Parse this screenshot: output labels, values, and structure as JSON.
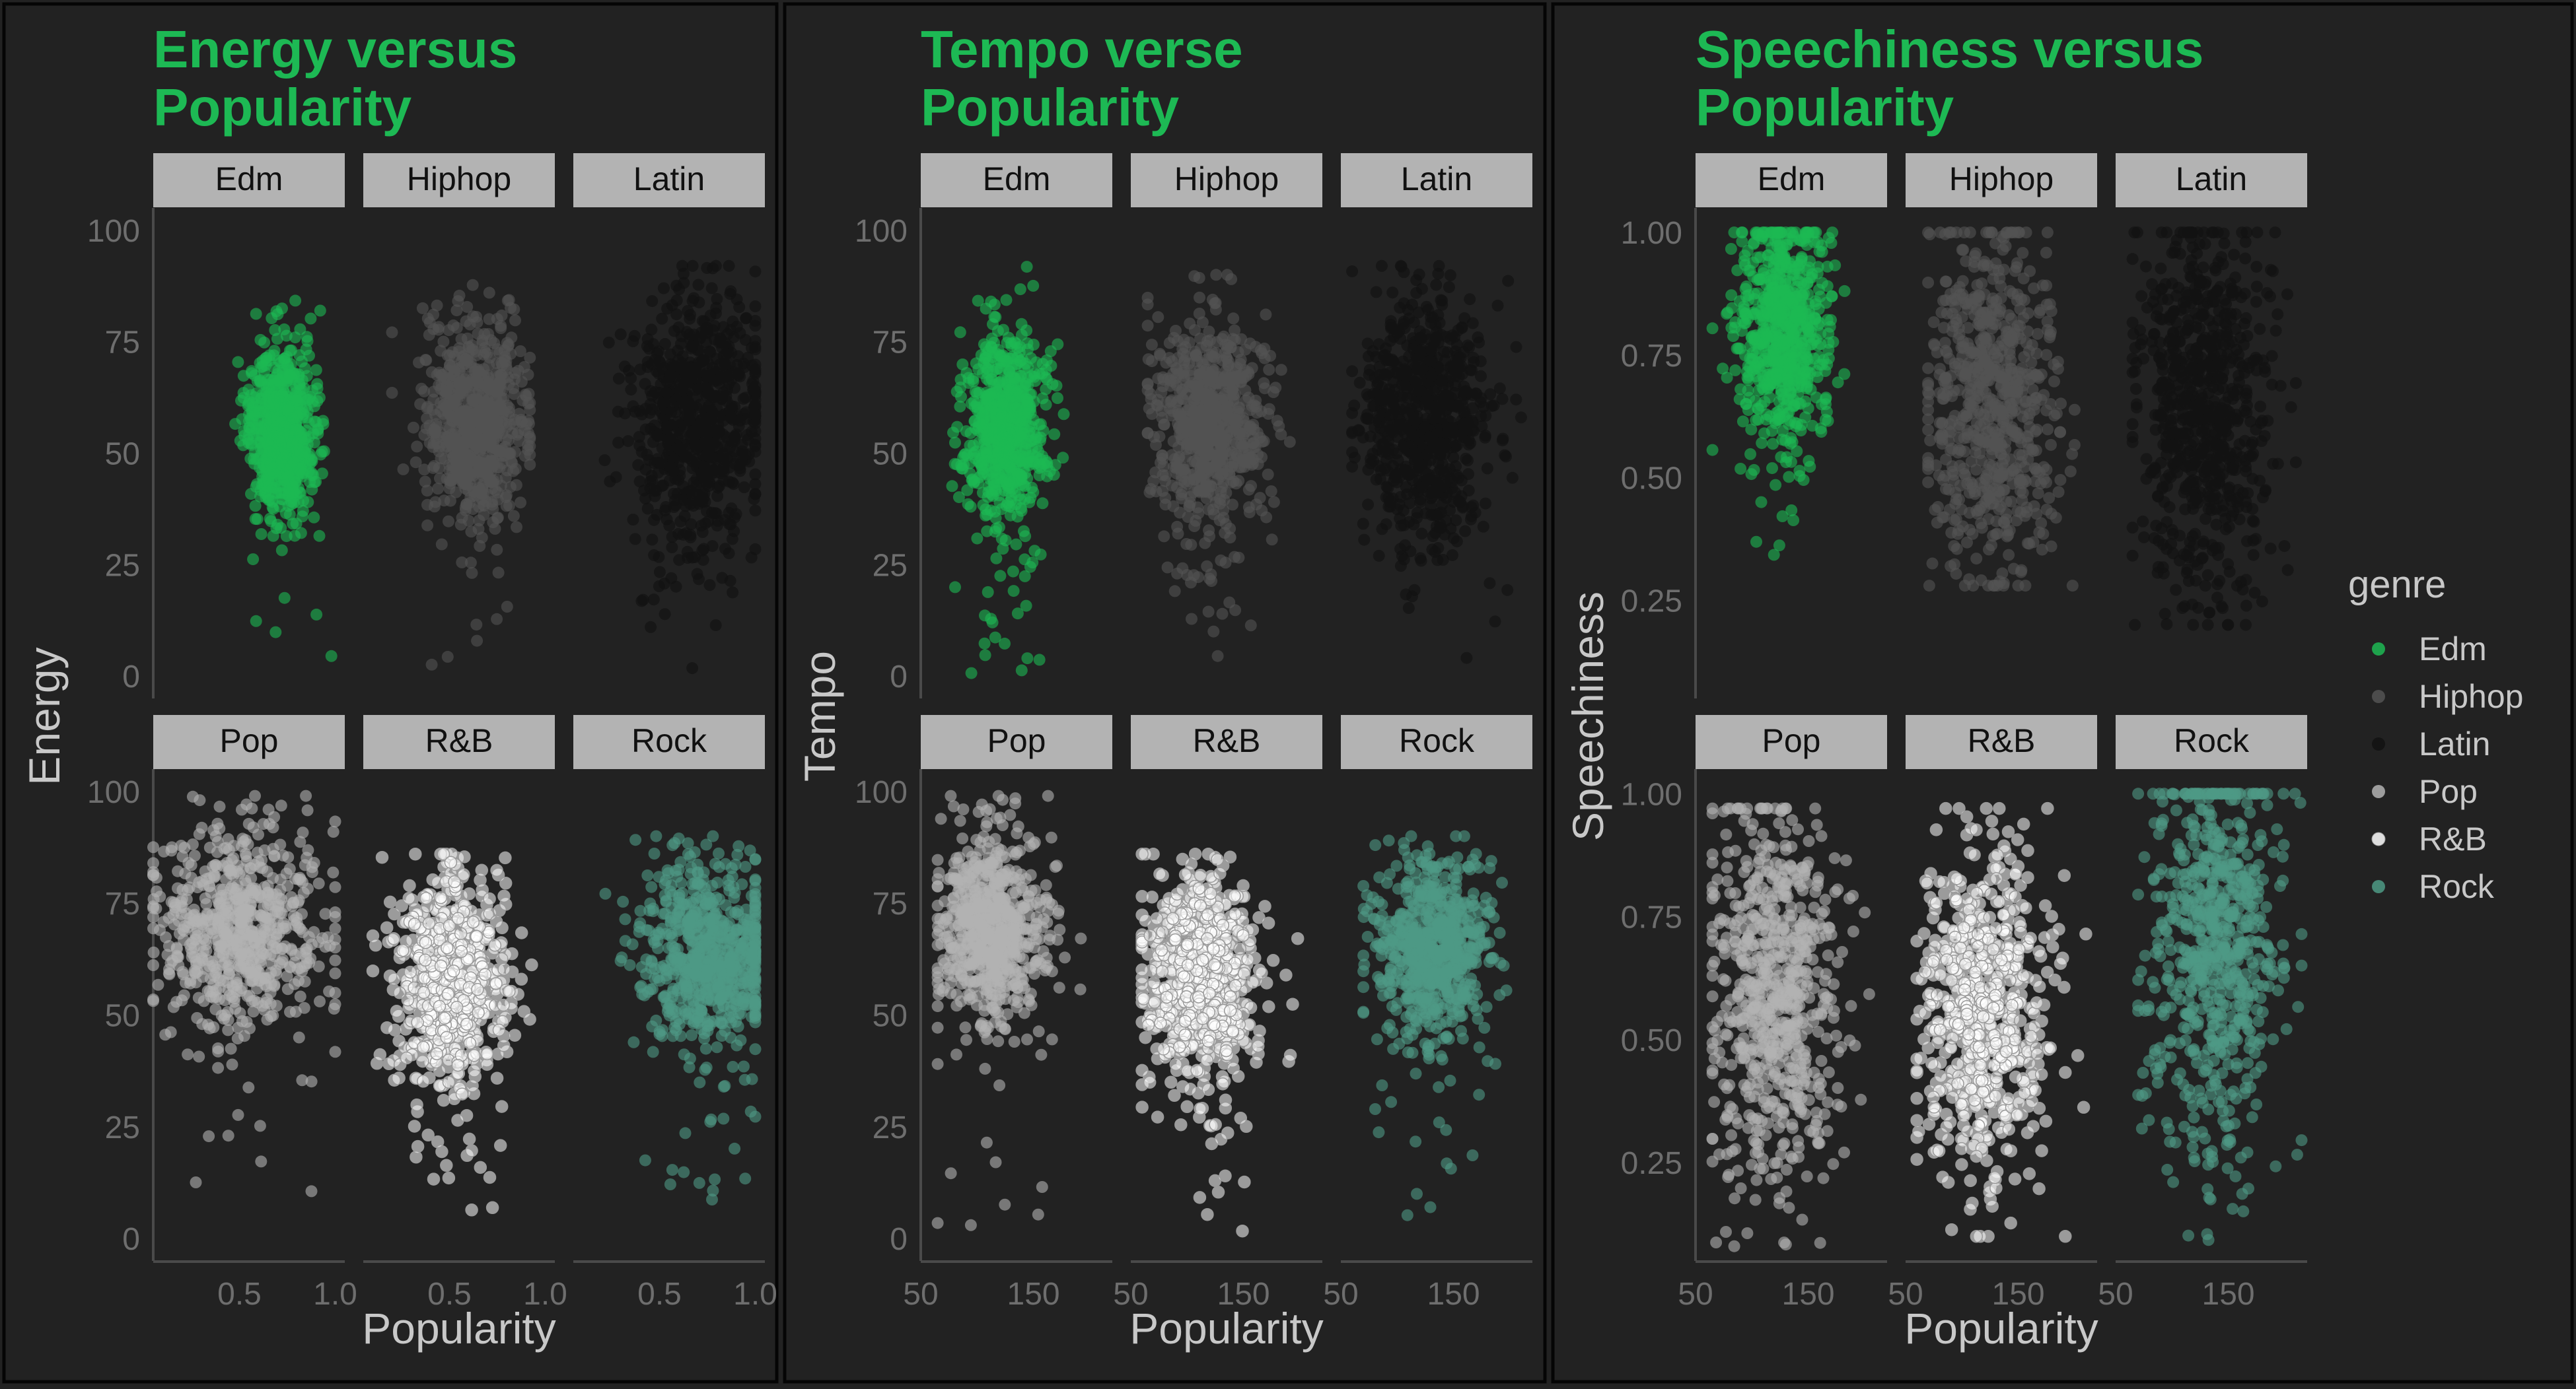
{
  "figure": {
    "background": "#222222",
    "border_color": "#050505",
    "title_color": "#1DB954",
    "strip_fill": "#B3B3B3",
    "axis_text_color": "#6E6E6E",
    "axis_title_color": "#C8C8C8"
  },
  "genres": [
    "Edm",
    "Hiphop",
    "Latin",
    "Pop",
    "R&B",
    "Rock"
  ],
  "genre_colors": {
    "Edm": "#1DB954",
    "Hiphop": "#535353",
    "Latin": "#121212",
    "Pop": "#B3B3B3",
    "R&B": "#FFFFFF",
    "Rock": "#4E9A85"
  },
  "legend": {
    "title": "genre",
    "position": "right",
    "items": [
      "Edm",
      "Hiphop",
      "Latin",
      "Pop",
      "R&B",
      "Rock"
    ]
  },
  "chart_data": [
    {
      "type": "scatter",
      "title": "Energy versus Popularity",
      "title_lines": [
        "Energy versus",
        "Popularity"
      ],
      "xlabel": "Popularity",
      "ylabel": "Energy",
      "facets": [
        "Edm",
        "Hiphop",
        "Latin",
        "Pop",
        "R&B",
        "Rock"
      ],
      "facet_layout": "3x2 wrap",
      "xlim": [
        0.05,
        1.05
      ],
      "ylim": [
        -5,
        105
      ],
      "xticks": [
        0.5,
        1.0
      ],
      "xtick_labels": [
        "0.5",
        "1.0"
      ],
      "yticks": [
        0,
        25,
        50,
        75,
        100
      ],
      "ytick_labels": [
        "0",
        "25",
        "50",
        "75",
        "100"
      ],
      "grid": false,
      "series": [
        {
          "name": "Edm",
          "x_center": 0.72,
          "x_spread": 0.085,
          "x_range": [
            0.28,
            0.98
          ],
          "y_center": 55,
          "y_spread": 9,
          "y_range": [
            0,
            92
          ],
          "n": 700
        },
        {
          "name": "Hiphop",
          "x_center": 0.63,
          "x_spread": 0.14,
          "x_range": [
            0.2,
            0.92
          ],
          "y_center": 57,
          "y_spread": 11,
          "y_range": [
            2,
            91
          ],
          "n": 700
        },
        {
          "name": "Latin",
          "x_center": 0.7,
          "x_spread": 0.17,
          "x_range": [
            0.05,
            1.0
          ],
          "y_center": 57,
          "y_spread": 14,
          "y_range": [
            0,
            92
          ],
          "n": 700
        },
        {
          "name": "Pop",
          "x_center": 0.5,
          "x_spread": 0.22,
          "x_range": [
            0.05,
            1.0
          ],
          "y_center": 69,
          "y_spread": 11,
          "y_range": [
            2,
            99
          ],
          "n": 700
        },
        {
          "name": "R&B",
          "x_center": 0.5,
          "x_spread": 0.15,
          "x_range": [
            0.1,
            0.95
          ],
          "y_center": 58,
          "y_spread": 12,
          "y_range": [
            1,
            86
          ],
          "n": 700
        },
        {
          "name": "Rock",
          "x_center": 0.76,
          "x_spread": 0.18,
          "x_range": [
            0.05,
            1.0
          ],
          "y_center": 64,
          "y_spread": 10,
          "y_range": [
            5,
            90
          ],
          "n": 700
        }
      ]
    },
    {
      "type": "scatter",
      "title": "Tempo verse Popularity",
      "title_lines": [
        "Tempo verse",
        "Popularity"
      ],
      "xlabel": "Popularity",
      "ylabel": "Tempo",
      "facets": [
        "Edm",
        "Hiphop",
        "Latin",
        "Pop",
        "R&B",
        "Rock"
      ],
      "facet_layout": "3x2 wrap",
      "xlim": [
        50,
        220
      ],
      "ylim": [
        -5,
        105
      ],
      "xticks": [
        50,
        150
      ],
      "xtick_labels": [
        "50",
        "150"
      ],
      "yticks": [
        0,
        25,
        50,
        75,
        100
      ],
      "ytick_labels": [
        "0",
        "25",
        "50",
        "75",
        "100"
      ],
      "grid": false,
      "series": [
        {
          "name": "Edm",
          "x_center": 125,
          "x_spread": 18,
          "x_range": [
            65,
            190
          ],
          "y_center": 55,
          "y_spread": 10,
          "y_range": [
            0,
            92
          ],
          "n": 700
        },
        {
          "name": "Hiphop",
          "x_center": 120,
          "x_spread": 25,
          "x_range": [
            65,
            200
          ],
          "y_center": 57,
          "y_spread": 11,
          "y_range": [
            2,
            90
          ],
          "n": 700
        },
        {
          "name": "Latin",
          "x_center": 125,
          "x_spread": 28,
          "x_range": [
            60,
            210
          ],
          "y_center": 57,
          "y_spread": 14,
          "y_range": [
            0,
            92
          ],
          "n": 700
        },
        {
          "name": "Pop",
          "x_center": 112,
          "x_spread": 24,
          "x_range": [
            65,
            200
          ],
          "y_center": 69,
          "y_spread": 11,
          "y_range": [
            2,
            99
          ],
          "n": 700
        },
        {
          "name": "R&B",
          "x_center": 112,
          "x_spread": 26,
          "x_range": [
            60,
            210
          ],
          "y_center": 58,
          "y_spread": 12,
          "y_range": [
            1,
            86
          ],
          "n": 700
        },
        {
          "name": "Rock",
          "x_center": 130,
          "x_spread": 25,
          "x_range": [
            70,
            210
          ],
          "y_center": 64,
          "y_spread": 10,
          "y_range": [
            5,
            90
          ],
          "n": 700
        }
      ]
    },
    {
      "type": "scatter",
      "title": "Speechiness versus Popularity",
      "title_lines": [
        "Speechiness versus",
        "Popularity"
      ],
      "xlabel": "Popularity",
      "ylabel": "Speechiness",
      "facets": [
        "Edm",
        "Hiphop",
        "Latin",
        "Pop",
        "R&B",
        "Rock"
      ],
      "facet_layout": "3x2 wrap",
      "xlim": [
        50,
        220
      ],
      "ylim": [
        0.05,
        1.05
      ],
      "xticks": [
        50,
        150
      ],
      "xtick_labels": [
        "50",
        "150"
      ],
      "yticks": [
        0.25,
        0.5,
        0.75,
        1.0
      ],
      "ytick_labels": [
        "0.25",
        "0.50",
        "0.75",
        "1.00"
      ],
      "grid": false,
      "series": [
        {
          "name": "Edm",
          "x_center": 127,
          "x_spread": 20,
          "x_range": [
            65,
            190
          ],
          "y_center": 0.8,
          "y_spread": 0.12,
          "y_range": [
            0.3,
            1.0
          ],
          "n": 700
        },
        {
          "name": "Hiphop",
          "x_center": 125,
          "x_spread": 28,
          "x_range": [
            70,
            200
          ],
          "y_center": 0.65,
          "y_spread": 0.17,
          "y_range": [
            0.28,
            1.0
          ],
          "n": 700
        },
        {
          "name": "Latin",
          "x_center": 128,
          "x_spread": 30,
          "x_range": [
            65,
            210
          ],
          "y_center": 0.66,
          "y_spread": 0.19,
          "y_range": [
            0.2,
            1.0
          ],
          "n": 700
        },
        {
          "name": "Pop",
          "x_center": 120,
          "x_spread": 30,
          "x_range": [
            65,
            210
          ],
          "y_center": 0.6,
          "y_spread": 0.2,
          "y_range": [
            0.08,
            0.97
          ],
          "n": 700
        },
        {
          "name": "R&B",
          "x_center": 120,
          "x_spread": 28,
          "x_range": [
            60,
            210
          ],
          "y_center": 0.55,
          "y_spread": 0.15,
          "y_range": [
            0.1,
            0.97
          ],
          "n": 700
        },
        {
          "name": "Rock",
          "x_center": 140,
          "x_spread": 30,
          "x_range": [
            70,
            215
          ],
          "y_center": 0.7,
          "y_spread": 0.2,
          "y_range": [
            0.08,
            1.0
          ],
          "n": 700
        }
      ]
    }
  ]
}
